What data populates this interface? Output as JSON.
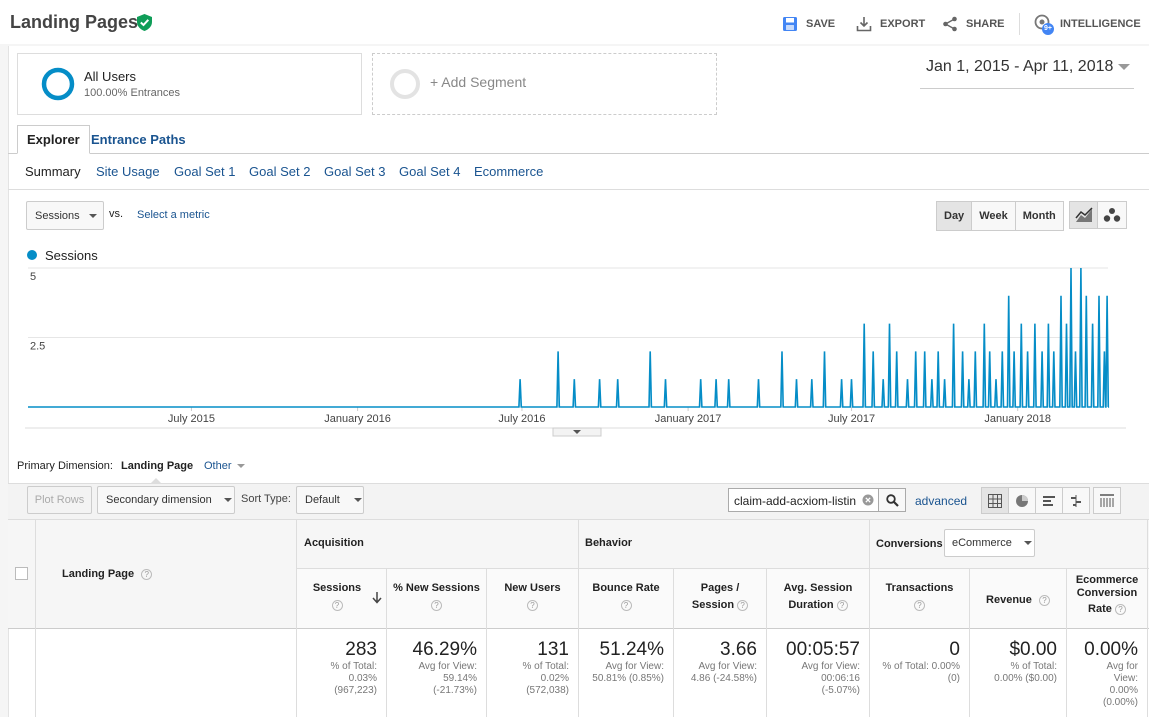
{
  "header": {
    "title": "Landing Pages",
    "save": "SAVE",
    "export": "EXPORT",
    "share": "SHARE",
    "intelligence": "INTELLIGENCE",
    "intelligence_badge": "9+"
  },
  "segments": {
    "all_users": "All Users",
    "all_users_sub": "100.00% Entrances",
    "add_segment": "+ Add Segment"
  },
  "date_range": "Jan 1, 2015 - Apr 11, 2018",
  "tabs": [
    "Explorer",
    "Entrance Paths"
  ],
  "subtabs": [
    "Summary",
    "Site Usage",
    "Goal Set 1",
    "Goal Set 2",
    "Goal Set 3",
    "Goal Set 4",
    "Ecommerce"
  ],
  "controls": {
    "metric": "Sessions",
    "vs": "vs.",
    "select_metric": "Select a metric",
    "granularity": [
      "Day",
      "Week",
      "Month"
    ]
  },
  "chart_data": {
    "type": "line",
    "series": [
      {
        "name": "Sessions",
        "color": "#058dc7"
      }
    ],
    "y_ticks": [
      "5",
      "2.5"
    ],
    "ylim": [
      0,
      5
    ],
    "x_ticks": [
      "July 2015",
      "January 2016",
      "July 2016",
      "January 2017",
      "July 2017",
      "January 2018"
    ],
    "x_range": [
      "2015-01-01",
      "2018-04-11"
    ],
    "spikes": [
      [
        "2016-06-29",
        1
      ],
      [
        "2016-08-10",
        2
      ],
      [
        "2016-08-28",
        1
      ],
      [
        "2016-09-25",
        1
      ],
      [
        "2016-10-15",
        1
      ],
      [
        "2016-11-20",
        2
      ],
      [
        "2016-12-07",
        1
      ],
      [
        "2017-01-15",
        1
      ],
      [
        "2017-02-01",
        1
      ],
      [
        "2017-02-15",
        1
      ],
      [
        "2017-03-20",
        1
      ],
      [
        "2017-04-15",
        2
      ],
      [
        "2017-05-01",
        1
      ],
      [
        "2017-05-18",
        1
      ],
      [
        "2017-06-01",
        2
      ],
      [
        "2017-06-20",
        1
      ],
      [
        "2017-07-01",
        1
      ],
      [
        "2017-07-15",
        3
      ],
      [
        "2017-07-25",
        2
      ],
      [
        "2017-08-05",
        1
      ],
      [
        "2017-08-12",
        3
      ],
      [
        "2017-08-20",
        2
      ],
      [
        "2017-09-01",
        1
      ],
      [
        "2017-09-10",
        2
      ],
      [
        "2017-09-20",
        2
      ],
      [
        "2017-09-28",
        1
      ],
      [
        "2017-10-05",
        2
      ],
      [
        "2017-10-12",
        1
      ],
      [
        "2017-10-22",
        3
      ],
      [
        "2017-11-01",
        2
      ],
      [
        "2017-11-08",
        1
      ],
      [
        "2017-11-15",
        2
      ],
      [
        "2017-11-25",
        3
      ],
      [
        "2017-12-01",
        2
      ],
      [
        "2017-12-08",
        1
      ],
      [
        "2017-12-15",
        2
      ],
      [
        "2017-12-22",
        4
      ],
      [
        "2017-12-28",
        2
      ],
      [
        "2018-01-05",
        3
      ],
      [
        "2018-01-12",
        2
      ],
      [
        "2018-01-20",
        3
      ],
      [
        "2018-01-28",
        2
      ],
      [
        "2018-02-04",
        3
      ],
      [
        "2018-02-10",
        2
      ],
      [
        "2018-02-18",
        4
      ],
      [
        "2018-02-24",
        3
      ],
      [
        "2018-03-01",
        5
      ],
      [
        "2018-03-06",
        2
      ],
      [
        "2018-03-12",
        5
      ],
      [
        "2018-03-18",
        4
      ],
      [
        "2018-03-25",
        3
      ],
      [
        "2018-04-01",
        4
      ],
      [
        "2018-04-07",
        2
      ],
      [
        "2018-04-10",
        4
      ]
    ]
  },
  "table_controls": {
    "primary_label": "Primary Dimension:",
    "primary_value": "Landing Page",
    "other": "Other",
    "plot_rows": "Plot Rows",
    "secondary": "Secondary dimension",
    "sort_label": "Sort Type:",
    "sort_value": "Default",
    "search_value": "claim-add-acxiom-listin",
    "advanced": "advanced"
  },
  "table": {
    "dim_header": "Landing Page",
    "groups": {
      "acquisition": "Acquisition",
      "behavior": "Behavior",
      "conversions": "Conversions",
      "conversions_select": "eCommerce"
    },
    "columns": [
      {
        "label": "Sessions",
        "value": "283",
        "sub": [
          "% of Total:",
          "0.03%",
          "(967,223)"
        ]
      },
      {
        "label": "% New Sessions",
        "value": "46.29%",
        "sub": [
          "Avg for View:",
          "59.14%",
          "(-21.73%)"
        ]
      },
      {
        "label": "New Users",
        "value": "131",
        "sub": [
          "% of Total:",
          "0.02%",
          "(572,038)"
        ]
      },
      {
        "label": "Bounce Rate",
        "value": "51.24%",
        "sub": [
          "Avg for View:",
          "50.81% (0.85%)",
          ""
        ]
      },
      {
        "label_1": "Pages /",
        "label_2": "Session",
        "value": "3.66",
        "sub": [
          "Avg for View:",
          "4.86 (-24.58%)",
          ""
        ]
      },
      {
        "label_1": "Avg. Session",
        "label_2": "Duration",
        "value": "00:05:57",
        "sub": [
          "Avg for View:",
          "00:06:16",
          "(-5.07%)"
        ]
      },
      {
        "label": "Transactions",
        "value": "0",
        "sub": [
          "% of Total: 0.00%",
          "(0)",
          ""
        ]
      },
      {
        "label": "Revenue",
        "value": "$0.00",
        "sub": [
          "% of Total:",
          "0.00% ($0.00)",
          ""
        ]
      },
      {
        "label_1": "Ecommerce",
        "label_2": "Conversion",
        "label_3": "Rate",
        "value": "0.00%",
        "sub": [
          "Avg for",
          "View:",
          "0.00%",
          "(0.00%)"
        ]
      }
    ]
  }
}
